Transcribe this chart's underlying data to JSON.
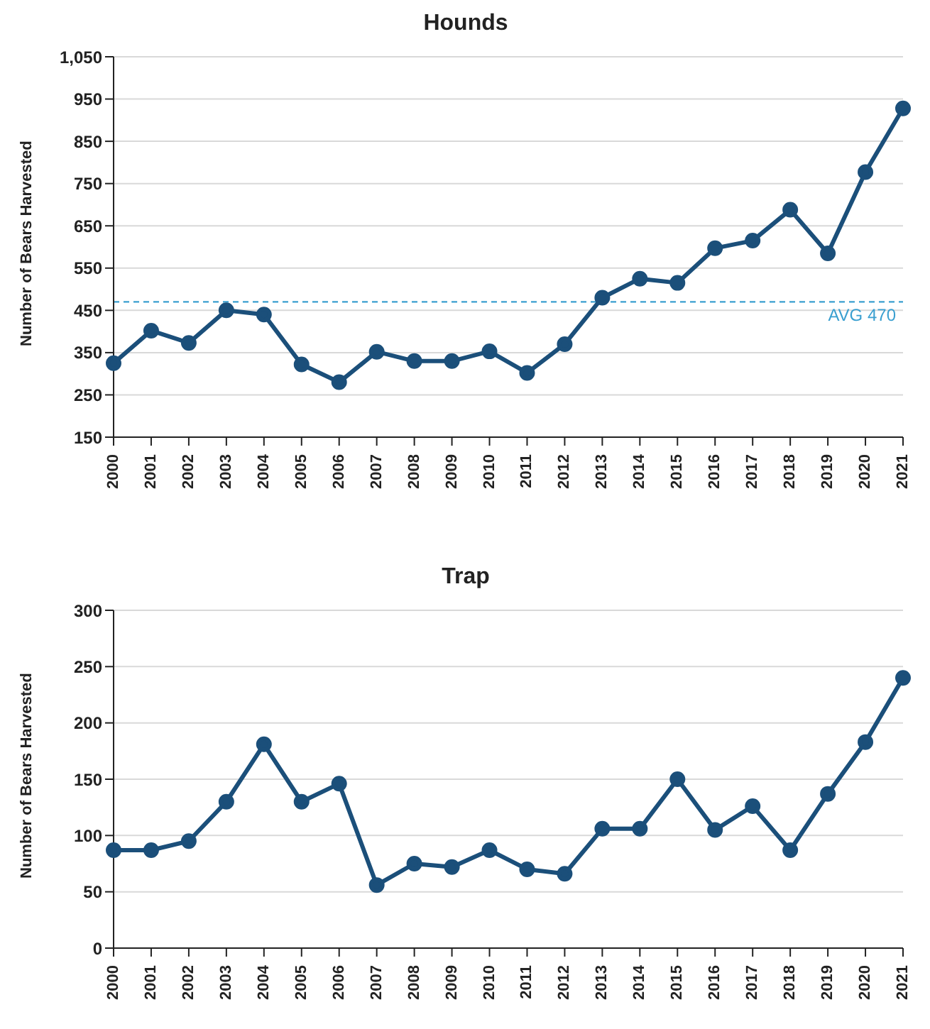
{
  "chart_data": [
    {
      "type": "line",
      "title": "Hounds",
      "ylabel": "Number of Bears Harvested",
      "categories": [
        "2000",
        "2001",
        "2002",
        "2003",
        "2004",
        "2005",
        "2006",
        "2007",
        "2008",
        "2009",
        "2010",
        "2011",
        "2012",
        "2013",
        "2014",
        "2015",
        "2016",
        "2017",
        "2018",
        "2019",
        "2020",
        "2021"
      ],
      "series": [
        {
          "color": "#1b4f7a",
          "values": [
            325,
            402,
            373,
            450,
            440,
            322,
            280,
            352,
            330,
            330,
            353,
            302,
            370,
            480,
            525,
            515,
            597,
            615,
            688,
            585,
            777,
            928
          ]
        }
      ],
      "ylim": [
        150,
        1050
      ],
      "yticks": [
        150,
        250,
        350,
        450,
        550,
        650,
        750,
        850,
        950,
        {
          "value": 1050,
          "label": "1,050"
        }
      ],
      "grid": "y",
      "marker": "circle",
      "line_style": "solid",
      "legend": false,
      "ref_lines": [
        {
          "axis": "y",
          "value": 470,
          "label": "AVG 470",
          "color": "#3a9fd0",
          "line_style": "dashed"
        }
      ]
    },
    {
      "type": "line",
      "title": "Trap",
      "ylabel": "Number of Bears Harvested",
      "categories": [
        "2000",
        "2001",
        "2002",
        "2003",
        "2004",
        "2005",
        "2006",
        "2007",
        "2008",
        "2009",
        "2010",
        "2011",
        "2012",
        "2013",
        "2014",
        "2015",
        "2016",
        "2017",
        "2018",
        "2019",
        "2020",
        "2021"
      ],
      "series": [
        {
          "color": "#1b4f7a",
          "values": [
            87,
            87,
            95,
            130,
            181,
            130,
            146,
            56,
            75,
            72,
            87,
            70,
            66,
            106,
            106,
            150,
            105,
            126,
            87,
            137,
            183,
            240
          ]
        }
      ],
      "ylim": [
        0,
        300
      ],
      "yticks": [
        0,
        50,
        100,
        150,
        200,
        250,
        300
      ],
      "grid": "y",
      "marker": "circle",
      "line_style": "solid",
      "legend": false
    }
  ]
}
